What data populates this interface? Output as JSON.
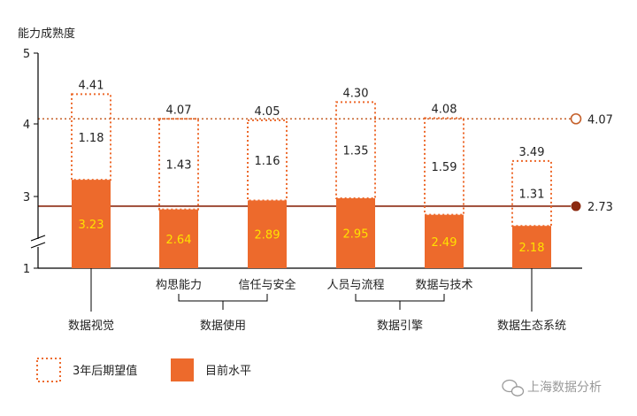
{
  "chart_data": {
    "type": "bar",
    "ylabel": "能力成熟度",
    "y_ticks": [
      "5",
      "4",
      "3",
      "1"
    ],
    "ylim": [
      1,
      5
    ],
    "axis_break": true,
    "categories": [
      "数据视觉",
      "构思能力",
      "信任与安全",
      "人员与流程",
      "数据与技术",
      "数据生态系统"
    ],
    "category_groups": [
      {
        "label": "数据使用",
        "members": [
          "构思能力",
          "信任与安全"
        ]
      },
      {
        "label": "数据引擎",
        "members": [
          "人员与流程",
          "数据与技术"
        ]
      }
    ],
    "series": [
      {
        "name": "目前水平",
        "style": "filled",
        "color": "#ed6a2c",
        "values": [
          3.23,
          2.64,
          2.89,
          2.95,
          2.49,
          2.18
        ],
        "labels": [
          "3.23",
          "2.64",
          "2.89",
          "2.95",
          "2.49",
          "2.18"
        ]
      },
      {
        "name": "3年后期望值",
        "style": "dotted-outline",
        "color": "#ed6a2c",
        "values": [
          4.41,
          4.07,
          4.05,
          4.3,
          4.08,
          3.49
        ],
        "labels": [
          "4.41",
          "4.07",
          "4.05",
          "4.30",
          "4.08",
          "3.49"
        ]
      }
    ],
    "gaps": [
      "1.18",
      "1.43",
      "1.16",
      "1.35",
      "1.59",
      "1.31"
    ],
    "reference_lines": [
      {
        "value": 4.07,
        "label": "4.07",
        "style": "dotted",
        "marker": "hollow-circle",
        "color": "#c5602a"
      },
      {
        "value": 2.73,
        "label": "2.73",
        "style": "solid",
        "marker": "filled-circle",
        "color": "#8b2a10"
      }
    ],
    "legend": {
      "position": "bottom-left",
      "items": [
        "3年后期望值",
        "目前水平"
      ]
    },
    "colors": {
      "bar": "#ed6a2c",
      "bar_label": "#ffe100",
      "axis": "#000000",
      "text": "#222222"
    }
  },
  "watermark": {
    "text": "上海数据分析",
    "icon": "wechat-icon"
  }
}
